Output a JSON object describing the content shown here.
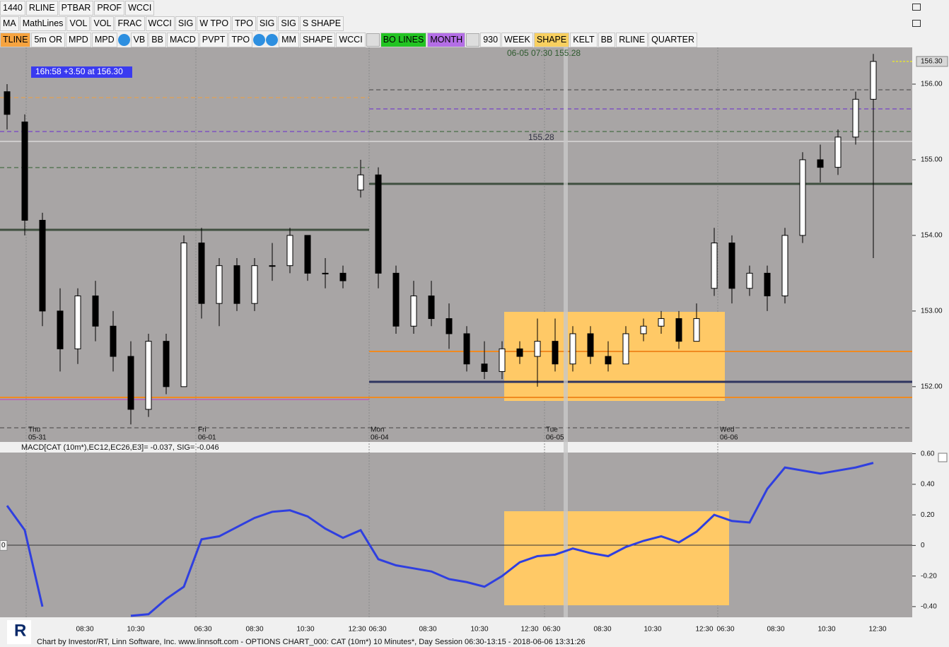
{
  "toolbar_rows": [
    [
      "1440",
      "RLINE",
      "PTBAR",
      "PROF",
      "WCCI"
    ],
    [
      "MA",
      "MathLines",
      "VOL",
      "VOL",
      "FRAC",
      "WCCI",
      "SIG",
      "W TPO",
      "TPO",
      "SIG",
      "SIG",
      "S SHAPE"
    ],
    [
      "TLINE",
      "5m OR",
      "MPD",
      "MPD",
      "VB",
      "BB",
      "MACD",
      "PVPT",
      "TPO",
      "MM",
      "SHAPE",
      "WCCI",
      "BO LINES",
      "MONTH",
      "930",
      "WEEK",
      "SHAPE",
      "KELT",
      "BB",
      "RLINE",
      "QUARTER"
    ]
  ],
  "chart_data": [
    {
      "type": "candlestick",
      "color_up": "#ffffff",
      "color_down": "#000000",
      "open": [
        155.9,
        155.5,
        154.2,
        153.0,
        152.5,
        153.2,
        152.8,
        152.4,
        151.7,
        152.6,
        152.0,
        153.9,
        153.1,
        153.6,
        153.1,
        153.6,
        153.6,
        154.0,
        153.5,
        153.5,
        154.6,
        154.8,
        153.5,
        152.8,
        153.2,
        152.9,
        152.7,
        152.3,
        152.2,
        152.5,
        152.4,
        152.6,
        152.3,
        152.7,
        152.4,
        152.3,
        152.7,
        152.8,
        152.9,
        152.6,
        153.3,
        153.9,
        153.3,
        153.5,
        153.2,
        154.0,
        155.0,
        154.9,
        155.3,
        155.8
      ],
      "high": [
        156.0,
        155.6,
        154.3,
        153.3,
        153.3,
        153.4,
        153.0,
        152.6,
        152.7,
        152.7,
        154.0,
        154.1,
        153.7,
        153.7,
        153.7,
        153.9,
        154.1,
        154.0,
        153.7,
        153.6,
        155.0,
        154.9,
        153.6,
        153.4,
        153.4,
        153.1,
        152.8,
        152.6,
        152.6,
        152.6,
        152.9,
        152.9,
        152.8,
        152.8,
        152.6,
        152.8,
        152.9,
        153.0,
        153.0,
        153.1,
        154.1,
        154.0,
        153.6,
        153.6,
        154.1,
        155.1,
        155.2,
        155.4,
        155.9,
        156.4
      ],
      "low": [
        155.4,
        154.0,
        152.8,
        152.2,
        152.3,
        152.6,
        152.2,
        151.5,
        151.6,
        151.9,
        152.0,
        152.9,
        152.8,
        153.0,
        153.0,
        153.4,
        153.5,
        153.4,
        153.3,
        153.3,
        154.5,
        153.3,
        152.7,
        152.7,
        152.8,
        152.5,
        152.2,
        152.1,
        152.1,
        152.3,
        152.0,
        152.2,
        152.2,
        152.3,
        152.2,
        152.3,
        152.6,
        152.7,
        152.5,
        152.6,
        153.2,
        153.1,
        153.2,
        153.0,
        153.1,
        153.9,
        154.7,
        154.8,
        155.2,
        153.7
      ],
      "close": [
        155.6,
        154.2,
        153.0,
        152.5,
        153.2,
        152.8,
        152.4,
        151.7,
        152.6,
        152.0,
        153.9,
        153.1,
        153.6,
        153.1,
        153.6,
        153.6,
        154.0,
        153.5,
        153.5,
        153.4,
        154.8,
        153.5,
        152.8,
        153.2,
        152.9,
        152.7,
        152.3,
        152.2,
        152.5,
        152.4,
        152.6,
        152.3,
        152.7,
        152.4,
        152.3,
        152.7,
        152.8,
        152.9,
        152.6,
        152.9,
        153.9,
        153.3,
        153.5,
        153.2,
        154.0,
        155.0,
        154.9,
        155.3,
        155.8,
        156.3
      ],
      "ylim": [
        151.4,
        156.5
      ],
      "yticks": [
        {
          "value": 152,
          "label": "152.00"
        },
        {
          "value": 153,
          "label": "153.00"
        },
        {
          "value": 154,
          "label": "154.00"
        },
        {
          "value": 155,
          "label": "155.00"
        },
        {
          "value": 156,
          "label": "156.00"
        }
      ],
      "last_price": {
        "value": 156.3,
        "label": "156.30"
      },
      "timer_label": "16h:58  +3.50 at 156.30",
      "cursor_label": "06-05 07:30 155.28",
      "cursor_price": "155.28"
    },
    {
      "type": "line",
      "title": "MACD[CAT (10m*),EC12,EC26,E3]=  -0.037, SIG= -0.046",
      "series": [
        {
          "color": "#2f3fe0",
          "values": [
            0.26,
            0.1,
            -0.4,
            null,
            null,
            null,
            null,
            -0.46,
            -0.45,
            -0.35,
            -0.27,
            0.04,
            0.06,
            0.12,
            0.18,
            0.22,
            0.23,
            0.19,
            0.11,
            0.05,
            0.1,
            -0.09,
            -0.13,
            -0.15,
            -0.17,
            -0.22,
            -0.24,
            -0.27,
            -0.2,
            -0.11,
            -0.07,
            -0.06,
            -0.02,
            -0.05,
            -0.07,
            -0.01,
            0.03,
            0.06,
            0.02,
            0.09,
            0.2,
            0.16,
            0.15,
            0.37,
            0.51,
            0.49,
            0.47,
            0.49,
            0.51,
            0.54
          ]
        }
      ],
      "ylim": [
        -0.47,
        0.64
      ],
      "yticks": [
        {
          "value": -0.4,
          "label": "-0.40"
        },
        {
          "value": -0.2,
          "label": "-0.20"
        },
        0,
        {
          "value": 0.2,
          "label": "0.20"
        },
        {
          "value": 0.4,
          "label": "0.40"
        },
        {
          "value": 0.6,
          "label": "0.60"
        }
      ]
    }
  ],
  "day_labels": [
    [
      "Thu",
      "05-31"
    ],
    [
      "Fri",
      "06-01"
    ],
    [
      "Mon",
      "06-04"
    ],
    [
      "Tue",
      "06-05"
    ],
    [
      "Wed",
      "06-06"
    ]
  ],
  "time_labels": [
    "08:30",
    "10:30",
    "06:30",
    "08:30",
    "10:30",
    "12:30",
    "06:30",
    "08:30",
    "10:30",
    "12:30",
    "06:30",
    "08:30",
    "10:30",
    "12:30",
    "06:30",
    "08:30",
    "10:30",
    "12:30"
  ],
  "footer": "Chart by Investor/RT, Linn Software, Inc. www.linnsoft.com - OPTIONS CHART_000: CAT (10m*) 10 Minutes*, Day Session 06:30-13:15 - 2018-06-06 13:31:26"
}
